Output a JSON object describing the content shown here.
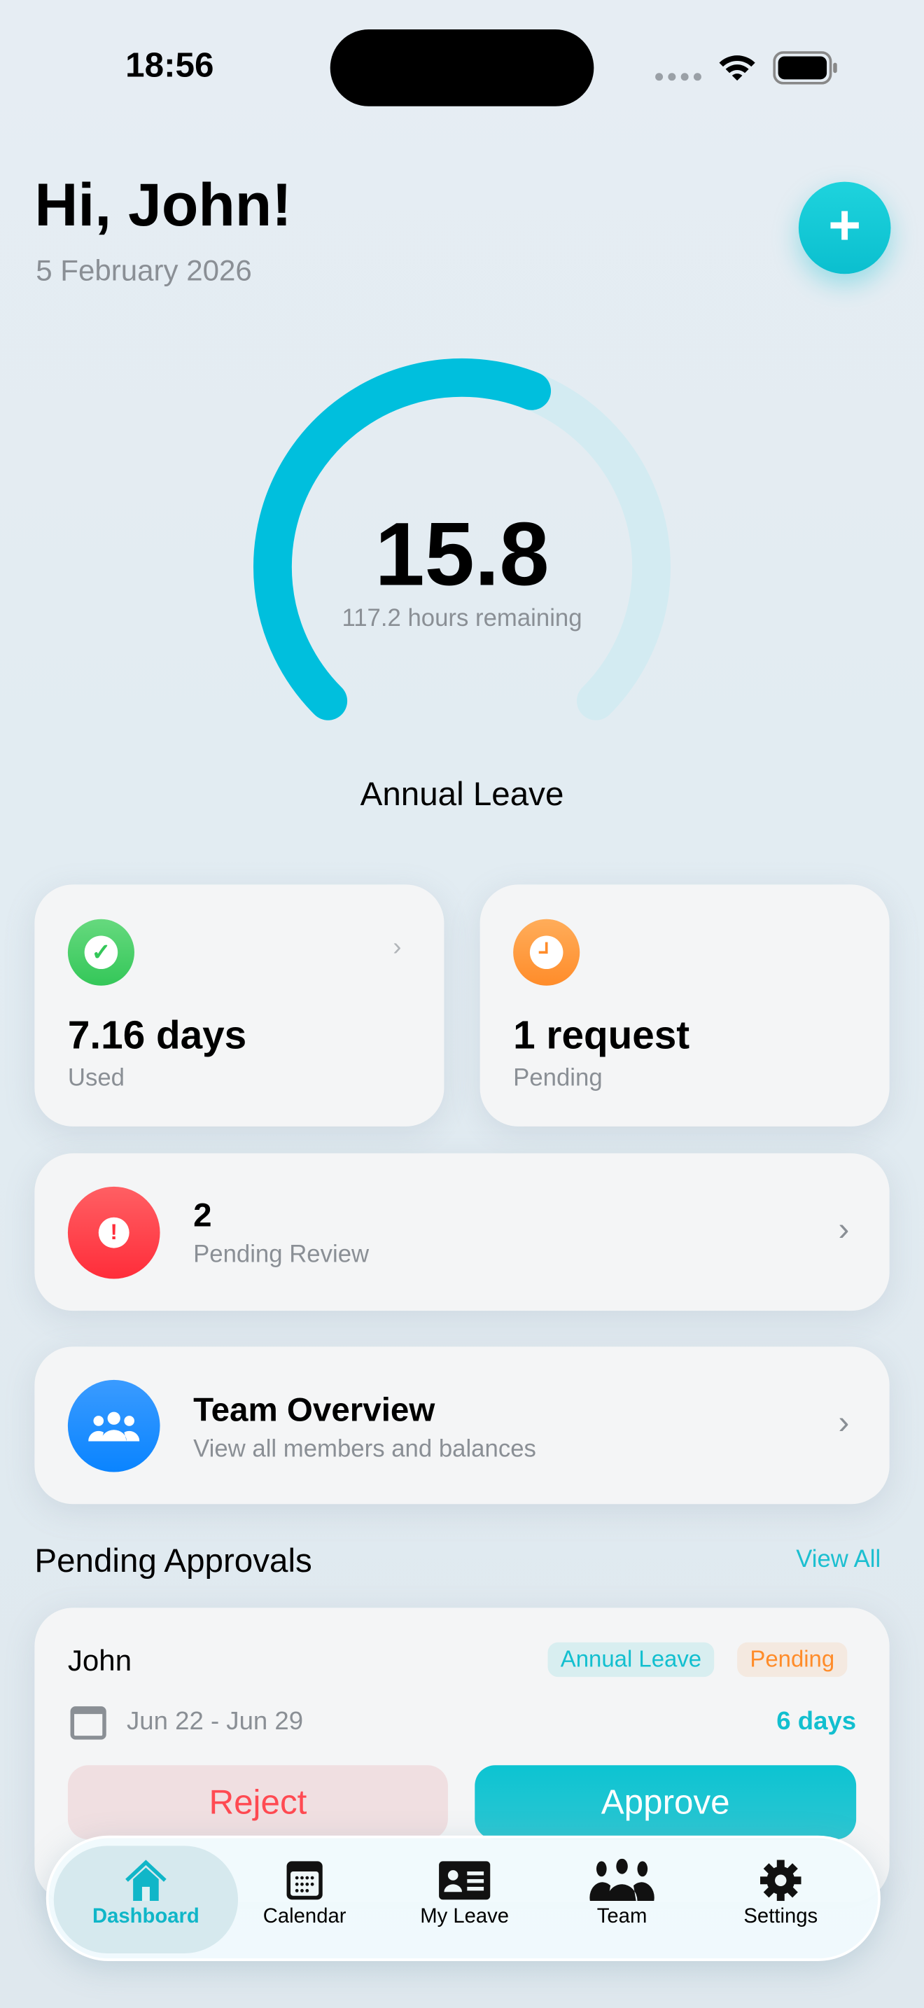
{
  "status_bar": {
    "time": "18:56"
  },
  "header": {
    "greeting": "Hi, John!",
    "date": "5 February 2026",
    "add_icon": "plus-icon"
  },
  "gauge": {
    "value": "15.8",
    "hours": "117.2 hours remaining",
    "label": "Annual Leave",
    "fill_fraction": 0.58,
    "color": "#00bfdd",
    "track_color": "#d3ebf2"
  },
  "stats": [
    {
      "value": "7.16 days",
      "label": "Used",
      "icon": "check-icon",
      "color": "#34c759"
    },
    {
      "value": "1 request",
      "label": "Pending",
      "icon": "clock-icon",
      "color": "#ff8c2a"
    }
  ],
  "review": {
    "value": "2",
    "label": "Pending Review",
    "icon": "exclamation-icon",
    "color": "#ff3b47"
  },
  "team": {
    "title": "Team Overview",
    "subtitle": "View all members and balances",
    "icon": "people-icon",
    "color": "#0a84ff"
  },
  "approvals": {
    "title": "Pending Approvals",
    "view_all": "View All",
    "items": [
      {
        "name": "John",
        "type": "Annual Leave",
        "status": "Pending",
        "dates": "Jun 22 - Jun 29",
        "days": "6 days",
        "reject": "Reject",
        "approve": "Approve"
      }
    ]
  },
  "tabbar": {
    "active": "Dashboard",
    "items": [
      {
        "label": "Dashboard",
        "icon": "house-icon"
      },
      {
        "label": "Calendar",
        "icon": "calendar-icon"
      },
      {
        "label": "My Leave",
        "icon": "id-card-icon"
      },
      {
        "label": "Team",
        "icon": "people-icon"
      },
      {
        "label": "Settings",
        "icon": "gear-icon"
      }
    ]
  }
}
